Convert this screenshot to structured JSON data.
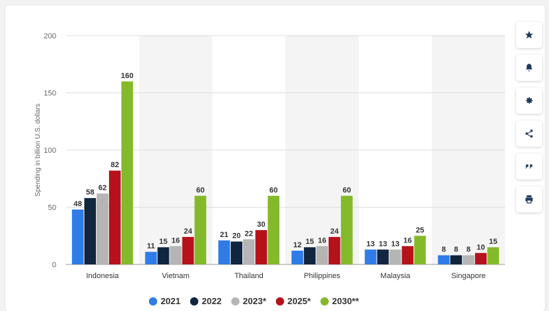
{
  "toolbar": {
    "buttons": [
      {
        "name": "favorite-button",
        "icon": "star-icon"
      },
      {
        "name": "notification-button",
        "icon": "bell-icon"
      },
      {
        "name": "settings-button",
        "icon": "gear-icon"
      },
      {
        "name": "share-button",
        "icon": "share-icon"
      },
      {
        "name": "cite-button",
        "icon": "quote-icon"
      },
      {
        "name": "print-button",
        "icon": "print-icon"
      }
    ]
  },
  "chart_data": {
    "type": "bar",
    "title": "",
    "xlabel": "",
    "ylabel": "Spending in billion U.S. dollars",
    "ylim": [
      0,
      200
    ],
    "yticks": [
      0,
      50,
      100,
      150,
      200
    ],
    "grid": true,
    "legend_position": "bottom",
    "categories": [
      "Indonesia",
      "Vietnam",
      "Thailand",
      "Philippines",
      "Malaysia",
      "Singapore"
    ],
    "series": [
      {
        "name": "2021",
        "color": "#2f7be8",
        "values": [
          48,
          11,
          21,
          12,
          13,
          8
        ]
      },
      {
        "name": "2022",
        "color": "#11253f",
        "values": [
          58,
          15,
          20,
          15,
          13,
          8
        ]
      },
      {
        "name": "2023*",
        "color": "#b5b5b5",
        "values": [
          62,
          16,
          22,
          16,
          13,
          8
        ]
      },
      {
        "name": "2025*",
        "color": "#b5121b",
        "values": [
          82,
          24,
          30,
          24,
          16,
          10
        ]
      },
      {
        "name": "2030**",
        "color": "#84ba29",
        "values": [
          160,
          60,
          60,
          60,
          25,
          15
        ]
      }
    ]
  }
}
